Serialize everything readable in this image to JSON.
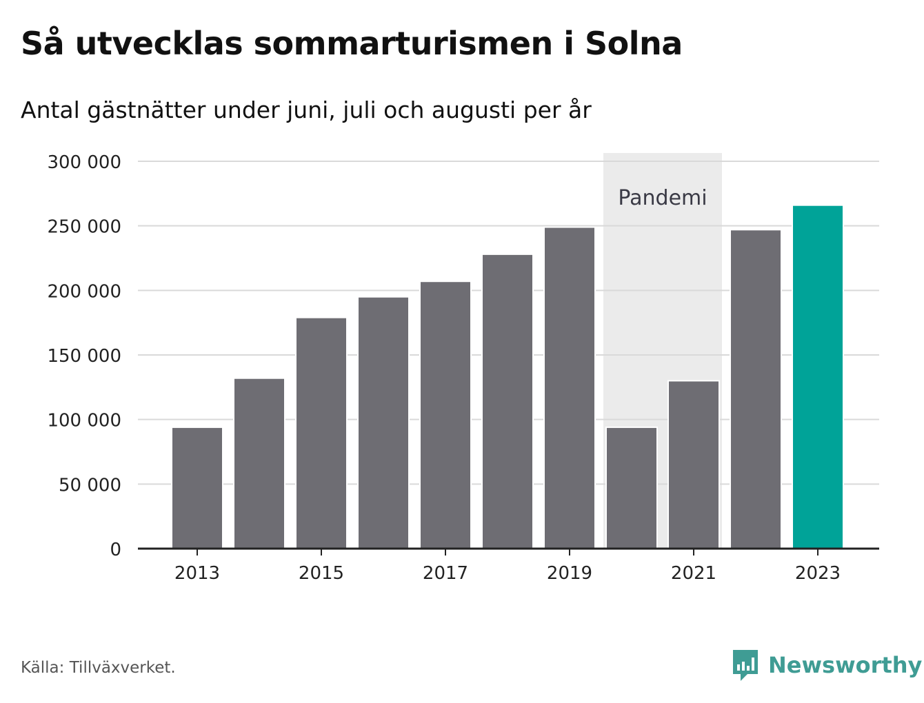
{
  "title": "Så utvecklas sommarturismen i Solna",
  "subtitle": "Antal gästnätter under juni, juli och augusti per år",
  "source": "Källa: Tillväxverket.",
  "brand": {
    "name": "Newsworthy",
    "color": "#3f9c94",
    "icon": "newsworthy-logo-icon"
  },
  "colors": {
    "bar": "#6e6d73",
    "highlight": "#00a398",
    "band": "#ebebeb",
    "grid": "#d9d9d9",
    "axis": "#222222"
  },
  "chart_data": {
    "type": "bar",
    "categories": [
      "2013",
      "2014",
      "2015",
      "2016",
      "2017",
      "2018",
      "2019",
      "2020",
      "2021",
      "2022",
      "2023"
    ],
    "values": [
      94000,
      132000,
      179000,
      195000,
      207000,
      228000,
      249000,
      94000,
      130000,
      247000,
      266000
    ],
    "highlight_category": "2023",
    "ylim": [
      0,
      300000
    ],
    "yticks": [
      0,
      50000,
      100000,
      150000,
      200000,
      250000,
      300000
    ],
    "ytick_labels": [
      "0",
      "50 000",
      "100 000",
      "150 000",
      "200 000",
      "250 000",
      "300 000"
    ],
    "xtick_labels": [
      "2013",
      "2015",
      "2017",
      "2019",
      "2021",
      "2023"
    ],
    "grid": true,
    "annotation": {
      "label": "Pandemi",
      "from": "2020",
      "to": "2021"
    },
    "xlabel": "",
    "ylabel": ""
  }
}
